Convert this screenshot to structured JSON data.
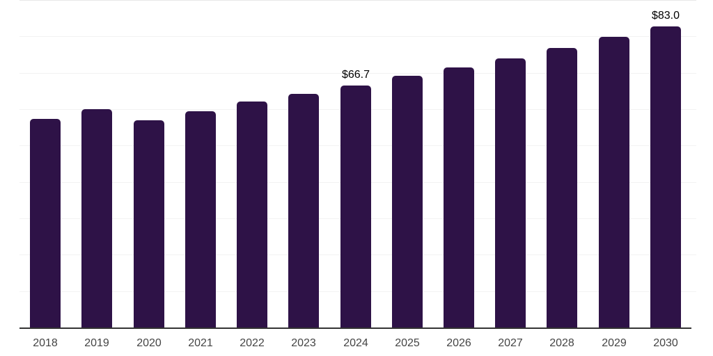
{
  "chart_data": {
    "type": "bar",
    "title": "",
    "categories": [
      "2018",
      "2019",
      "2020",
      "2021",
      "2022",
      "2023",
      "2024",
      "2025",
      "2026",
      "2027",
      "2028",
      "2029",
      "2030"
    ],
    "values": [
      57.5,
      60.1,
      57.2,
      59.6,
      62.3,
      64.4,
      66.7,
      69.3,
      71.7,
      74.2,
      77.0,
      80.1,
      83.0
    ],
    "value_labels": [
      "",
      "",
      "",
      "",
      "",
      "",
      "$66.7",
      "",
      "",
      "",
      "",
      "",
      "$83.0"
    ],
    "xlabel": "",
    "ylabel": "",
    "ylim": [
      0,
      90
    ],
    "gridline_step": 10,
    "grid": "horizontal-only",
    "legend": "none",
    "y_tick_labels_visible": false,
    "colors": {
      "bar": "#2e1247",
      "axis_line": "#333333",
      "gridline": "#f2f2f2",
      "top_gridline": "#e8e8e8",
      "tick_label": "#444444",
      "value_label": "#000000",
      "background": "#ffffff"
    }
  }
}
